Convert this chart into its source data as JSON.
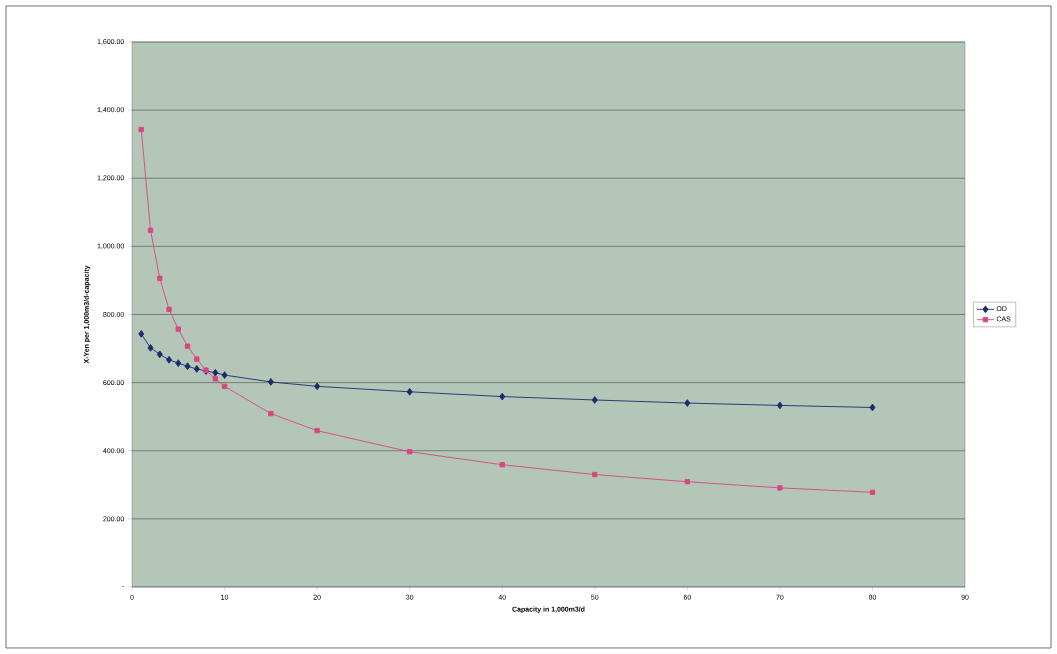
{
  "chart_data": {
    "type": "line",
    "xlabel": "Capacity in 1,000m3/d",
    "ylabel": "X-Yen per 1,000m3/d-capacity",
    "x": [
      1,
      2,
      3,
      4,
      5,
      6,
      7,
      8,
      9,
      10,
      15,
      20,
      30,
      40,
      50,
      60,
      70,
      80
    ],
    "series": [
      {
        "name": "OD",
        "color": "#1c2a6e",
        "marker": "diamond",
        "values": [
          743,
          702,
          683,
          667,
          657,
          648,
          640,
          634,
          629,
          622,
          602,
          589,
          573,
          559,
          549,
          540,
          533,
          527
        ]
      },
      {
        "name": "CAS",
        "color": "#d9467f",
        "marker": "square",
        "values": [
          1343,
          1047,
          906,
          815,
          757,
          707,
          669,
          636,
          611,
          589,
          509,
          459,
          397,
          359,
          330,
          309,
          291,
          278
        ]
      }
    ],
    "xlim": [
      0,
      90
    ],
    "xticks": [
      0,
      10,
      20,
      30,
      40,
      50,
      60,
      70,
      80,
      90
    ],
    "ylim": [
      0,
      1600
    ],
    "yticks": [
      {
        "value": 0,
        "label": "-"
      },
      {
        "value": 200,
        "label": "200.00"
      },
      {
        "value": 400,
        "label": "400.00"
      },
      {
        "value": 600,
        "label": "600.00"
      },
      {
        "value": 800,
        "label": "800.00"
      },
      {
        "value": 1000,
        "label": "1,000.00"
      },
      {
        "value": 1200,
        "label": "1,200.00"
      },
      {
        "value": 1400,
        "label": "1,400.00"
      },
      {
        "value": 1600,
        "label": "1,600.00"
      }
    ],
    "grid": "y",
    "legend": "right",
    "line_style": "solid"
  }
}
